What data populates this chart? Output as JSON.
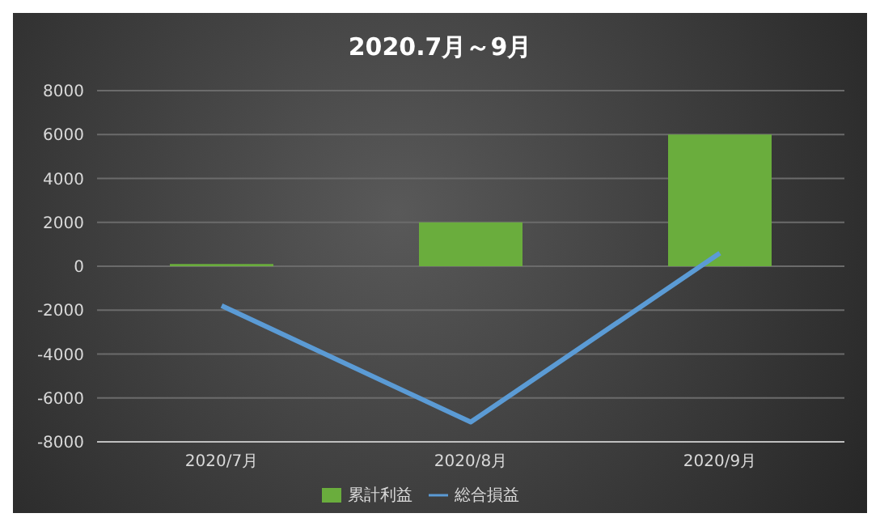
{
  "chart_data": {
    "type": "bar",
    "title": "2020.7月～9月",
    "categories": [
      "2020/7月",
      "2020/8月",
      "2020/9月"
    ],
    "series": [
      {
        "name": "累計利益",
        "color": "#6aad3d",
        "values": [
          100,
          2000,
          6000
        ]
      },
      {
        "name": "総合損益",
        "type": "line",
        "color": "#5b9bd5",
        "values": [
          -1800,
          -7100,
          600
        ]
      }
    ],
    "ylim": [
      -8000,
      8000
    ],
    "yticks": [
      -8000,
      -6000,
      -4000,
      -2000,
      0,
      2000,
      4000,
      6000,
      8000
    ],
    "grid": "y",
    "legend": "bottom",
    "marker": "none"
  }
}
